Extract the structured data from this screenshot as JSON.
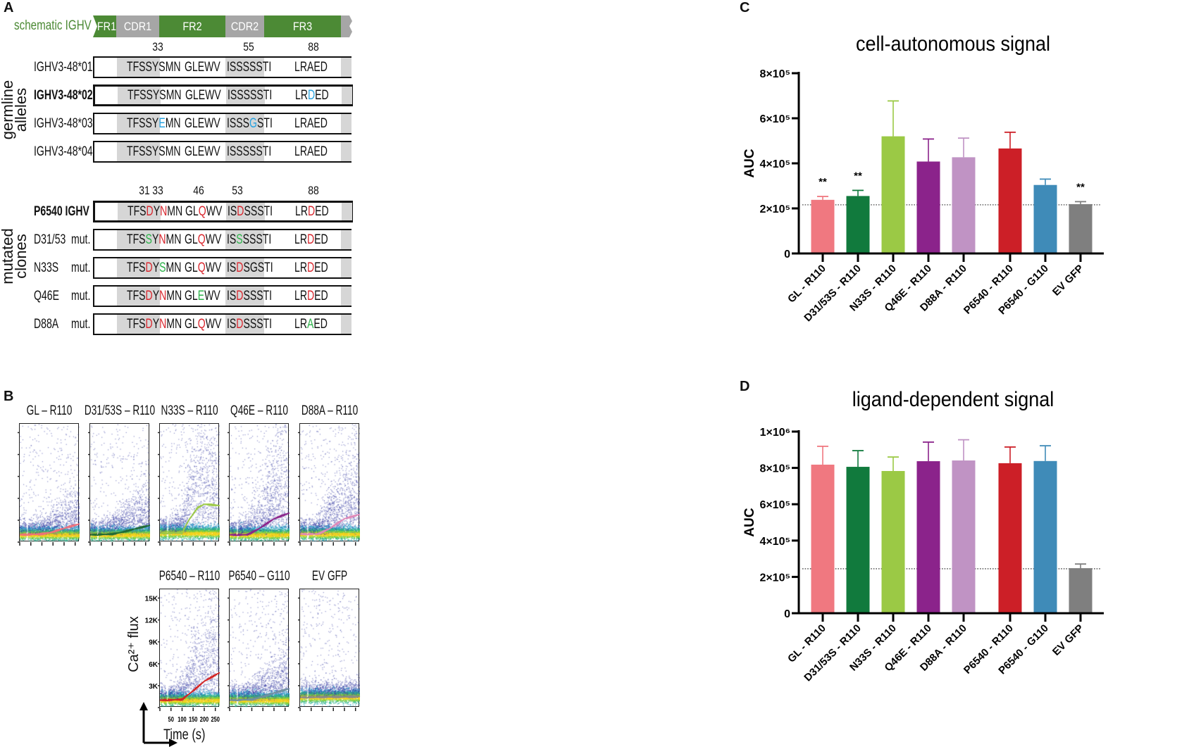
{
  "panel_labels": {
    "a": "A",
    "b": "B",
    "c": "C",
    "d": "D"
  },
  "panel_a": {
    "schematic_label": "schematic IGHV",
    "schematic_segments": [
      {
        "label": "FR1",
        "color": "#4c8a35"
      },
      {
        "label": "CDR1",
        "color": "#a6a6a6"
      },
      {
        "label": "FR2",
        "color": "#4c8a35"
      },
      {
        "label": "CDR2",
        "color": "#a6a6a6"
      },
      {
        "label": "FR3",
        "color": "#4c8a35"
      }
    ],
    "germline_group_label": [
      "germline",
      "alleles"
    ],
    "germline_positions": [
      "33",
      "55",
      "88"
    ],
    "germline_rows": [
      {
        "name": "IGHV3-48*01",
        "bold": false,
        "seqs": [
          [
            {
              "t": "TFSSYSMN"
            }
          ],
          [
            {
              "t": "GLEWV"
            }
          ],
          [
            {
              "t": "ISSSSSTI"
            }
          ],
          [
            {
              "t": "LRAED"
            }
          ]
        ]
      },
      {
        "name": "IGHV3-48*02",
        "bold": true,
        "seqs": [
          [
            {
              "t": "TFSSYSMN"
            }
          ],
          [
            {
              "t": "GLEWV"
            }
          ],
          [
            {
              "t": "ISSSSSTI"
            }
          ],
          [
            {
              "t": "LR"
            },
            {
              "t": "D",
              "c": "#29a3e0"
            },
            {
              "t": "ED"
            }
          ]
        ]
      },
      {
        "name": "IGHV3-48*03",
        "bold": false,
        "seqs": [
          [
            {
              "t": "TFSSY"
            },
            {
              "t": "E",
              "c": "#29a3e0"
            },
            {
              "t": "MN"
            }
          ],
          [
            {
              "t": "GLEWV"
            }
          ],
          [
            {
              "t": "ISSS"
            },
            {
              "t": "G",
              "c": "#29a3e0"
            },
            {
              "t": "STI"
            }
          ],
          [
            {
              "t": "LRAED"
            }
          ]
        ]
      },
      {
        "name": "IGHV3-48*04",
        "bold": false,
        "seqs": [
          [
            {
              "t": "TFSSYSMN"
            }
          ],
          [
            {
              "t": "GLEWV"
            }
          ],
          [
            {
              "t": "ISSSSSTI"
            }
          ],
          [
            {
              "t": "LRAED"
            }
          ]
        ]
      }
    ],
    "mutated_group_label": [
      "mutated",
      "clones"
    ],
    "mutated_positions": [
      "31",
      "33",
      "46",
      "53",
      "88"
    ],
    "mutated_rows": [
      {
        "name": "P6540 IGHV",
        "suffix": "",
        "bold": true,
        "seqs": [
          [
            {
              "t": "TFS"
            },
            {
              "t": "D",
              "c": "#d9272e"
            },
            {
              "t": "Y"
            },
            {
              "t": "N",
              "c": "#d9272e"
            },
            {
              "t": "MN"
            }
          ],
          [
            {
              "t": "GL"
            },
            {
              "t": "Q",
              "c": "#d9272e"
            },
            {
              "t": "WV"
            }
          ],
          [
            {
              "t": "IS"
            },
            {
              "t": "D",
              "c": "#d9272e"
            },
            {
              "t": "SSSTI"
            }
          ],
          [
            {
              "t": "LR"
            },
            {
              "t": "D",
              "c": "#d9272e"
            },
            {
              "t": "ED"
            }
          ]
        ]
      },
      {
        "name": "D31/53",
        "suffix": "mut.",
        "bold": false,
        "seqs": [
          [
            {
              "t": "TFS"
            },
            {
              "t": "S",
              "c": "#2db34a"
            },
            {
              "t": "Y"
            },
            {
              "t": "N",
              "c": "#d9272e"
            },
            {
              "t": "MN"
            }
          ],
          [
            {
              "t": "GL"
            },
            {
              "t": "Q",
              "c": "#d9272e"
            },
            {
              "t": "WV"
            }
          ],
          [
            {
              "t": "IS"
            },
            {
              "t": "S",
              "c": "#2db34a"
            },
            {
              "t": "SSSTI"
            }
          ],
          [
            {
              "t": "LR"
            },
            {
              "t": "D",
              "c": "#d9272e"
            },
            {
              "t": "ED"
            }
          ]
        ]
      },
      {
        "name": "N33S",
        "suffix": "mut.",
        "bold": false,
        "seqs": [
          [
            {
              "t": "TFS"
            },
            {
              "t": "D",
              "c": "#d9272e"
            },
            {
              "t": "Y"
            },
            {
              "t": "S",
              "c": "#2db34a"
            },
            {
              "t": "MN"
            }
          ],
          [
            {
              "t": "GL"
            },
            {
              "t": "Q",
              "c": "#d9272e"
            },
            {
              "t": "WV"
            }
          ],
          [
            {
              "t": "IS"
            },
            {
              "t": "D",
              "c": "#d9272e"
            },
            {
              "t": "SGSTI"
            }
          ],
          [
            {
              "t": "LR"
            },
            {
              "t": "D",
              "c": "#d9272e"
            },
            {
              "t": "ED"
            }
          ]
        ]
      },
      {
        "name": "Q46E",
        "suffix": "mut.",
        "bold": false,
        "seqs": [
          [
            {
              "t": "TFS"
            },
            {
              "t": "D",
              "c": "#d9272e"
            },
            {
              "t": "Y"
            },
            {
              "t": "N",
              "c": "#d9272e"
            },
            {
              "t": "MN"
            }
          ],
          [
            {
              "t": "GL"
            },
            {
              "t": "E",
              "c": "#2db34a"
            },
            {
              "t": "WV"
            }
          ],
          [
            {
              "t": "IS"
            },
            {
              "t": "D",
              "c": "#d9272e"
            },
            {
              "t": "SSSTI"
            }
          ],
          [
            {
              "t": "LR"
            },
            {
              "t": "D",
              "c": "#d9272e"
            },
            {
              "t": "ED"
            }
          ]
        ]
      },
      {
        "name": "D88A",
        "suffix": "mut.",
        "bold": false,
        "seqs": [
          [
            {
              "t": "TFS"
            },
            {
              "t": "D",
              "c": "#d9272e"
            },
            {
              "t": "Y"
            },
            {
              "t": "N",
              "c": "#d9272e"
            },
            {
              "t": "MN"
            }
          ],
          [
            {
              "t": "GL"
            },
            {
              "t": "Q",
              "c": "#d9272e"
            },
            {
              "t": "WV"
            }
          ],
          [
            {
              "t": "IS"
            },
            {
              "t": "D",
              "c": "#d9272e"
            },
            {
              "t": "SSSTI"
            }
          ],
          [
            {
              "t": "LR"
            },
            {
              "t": "A",
              "c": "#2db34a"
            },
            {
              "t": "ED"
            }
          ]
        ]
      }
    ]
  },
  "panel_b": {
    "ylabel": "Ca²⁺ flux",
    "xlabel": "Time (s)",
    "y_ticks": [
      "3K",
      "6K",
      "9K",
      "12K",
      "15K"
    ],
    "x_ticks": [
      "50",
      "100",
      "150",
      "200",
      "250"
    ],
    "plots": [
      {
        "title": "GL – R110",
        "color": "#f0707a",
        "response": 0.35,
        "curve": [
          [
            0,
            1.0
          ],
          [
            100,
            1.1
          ],
          [
            150,
            1.4
          ],
          [
            200,
            1.9
          ],
          [
            270,
            2.5
          ]
        ]
      },
      {
        "title": "D31/53S – R110",
        "color": "#1f6b35",
        "response": 0.5,
        "curve": [
          [
            0,
            1.0
          ],
          [
            100,
            1.1
          ],
          [
            150,
            1.4
          ],
          [
            200,
            1.8
          ],
          [
            270,
            2.3
          ]
        ]
      },
      {
        "title": "N33S – R110",
        "color": "#9bc945",
        "response": 1.0,
        "curve": [
          [
            0,
            1.2
          ],
          [
            100,
            1.3
          ],
          [
            130,
            3.0
          ],
          [
            170,
            4.7
          ],
          [
            200,
            5.2
          ],
          [
            270,
            5.0
          ]
        ]
      },
      {
        "title": "Q46E – R110",
        "color": "#8b238b",
        "response": 0.8,
        "curve": [
          [
            0,
            1.0
          ],
          [
            80,
            1.0
          ],
          [
            130,
            1.8
          ],
          [
            200,
            3.2
          ],
          [
            270,
            4.0
          ]
        ]
      },
      {
        "title": "D88A – R110",
        "color": "#e089b8",
        "response": 0.7,
        "curve": [
          [
            0,
            1.1
          ],
          [
            80,
            1.1
          ],
          [
            130,
            1.8
          ],
          [
            200,
            3.2
          ],
          [
            270,
            3.8
          ]
        ]
      },
      {
        "title": "P6540 – R110",
        "color": "#d42222",
        "response": 0.75,
        "curve": [
          [
            0,
            1.0
          ],
          [
            100,
            1.1
          ],
          [
            150,
            2.3
          ],
          [
            200,
            3.6
          ],
          [
            270,
            4.8
          ]
        ]
      },
      {
        "title": "P6540 – G110",
        "color": "#6f8fa0",
        "response": 0.45,
        "curve": [
          [
            0,
            1.0
          ],
          [
            100,
            1.1
          ],
          [
            150,
            1.5
          ],
          [
            200,
            2.0
          ],
          [
            270,
            2.6
          ]
        ]
      },
      {
        "title": "EV GFP",
        "color": "#8a8a8a",
        "response": 0.05,
        "curve": [
          [
            0,
            1.4
          ],
          [
            270,
            1.5
          ]
        ]
      }
    ]
  },
  "chart_data": [
    {
      "type": "bar",
      "panel": "C",
      "title": "cell-autonomous signal",
      "ylabel": "AUC",
      "xlabel": "",
      "ylim": [
        0,
        800000
      ],
      "y_ticks": [
        {
          "value": 0,
          "label": "0"
        },
        {
          "value": 200000,
          "label": "2×10⁵"
        },
        {
          "value": 400000,
          "label": "4×10⁵"
        },
        {
          "value": 600000,
          "label": "6×10⁵"
        },
        {
          "value": 800000,
          "label": "8×10⁵"
        }
      ],
      "categories": [
        "GL - R110",
        "D31/53S - R110",
        "N33S - R110",
        "Q46E - R110",
        "D88A - R110",
        "P6540 - R110",
        "P6540 - G110",
        "EV GFP"
      ],
      "values": [
        238000,
        255000,
        520000,
        408000,
        427000,
        466000,
        304000,
        219000
      ],
      "error_upper": [
        253000,
        280000,
        677000,
        508000,
        512000,
        538000,
        330000,
        230000
      ],
      "significance": [
        "**",
        "**",
        "",
        "",
        "",
        "",
        "",
        "**"
      ],
      "reference_line": 216000,
      "colors": [
        "#f07880",
        "#117a3d",
        "#9bc945",
        "#8b238b",
        "#c093c4",
        "#cc1f27",
        "#3f8bb8",
        "#7f7f7f"
      ]
    },
    {
      "type": "bar",
      "panel": "D",
      "title": "ligand-dependent signal",
      "ylabel": "AUC",
      "xlabel": "",
      "ylim": [
        0,
        1000000
      ],
      "y_ticks": [
        {
          "value": 0,
          "label": "0"
        },
        {
          "value": 200000,
          "label": "2×10⁵"
        },
        {
          "value": 400000,
          "label": "4×10⁵"
        },
        {
          "value": 600000,
          "label": "6×10⁵"
        },
        {
          "value": 800000,
          "label": "8×10⁵"
        },
        {
          "value": 1000000,
          "label": "1×10⁶"
        }
      ],
      "categories": [
        "GL - R110",
        "D31/53S - R110",
        "N33S - R110",
        "Q46E - R110",
        "D88A - R110",
        "P6540 - R110",
        "P6540 - G110",
        "EV GFP"
      ],
      "values": [
        818000,
        806000,
        783000,
        837000,
        841000,
        826000,
        838000,
        248000
      ],
      "error_upper": [
        919000,
        895000,
        860000,
        942000,
        955000,
        915000,
        922000,
        271000
      ],
      "significance": [
        "",
        "",
        "",
        "",
        "",
        "",
        "",
        ""
      ],
      "reference_line": 245000,
      "colors": [
        "#f07880",
        "#117a3d",
        "#9bc945",
        "#8b238b",
        "#c093c4",
        "#cc1f27",
        "#3f8bb8",
        "#7f7f7f"
      ]
    }
  ]
}
